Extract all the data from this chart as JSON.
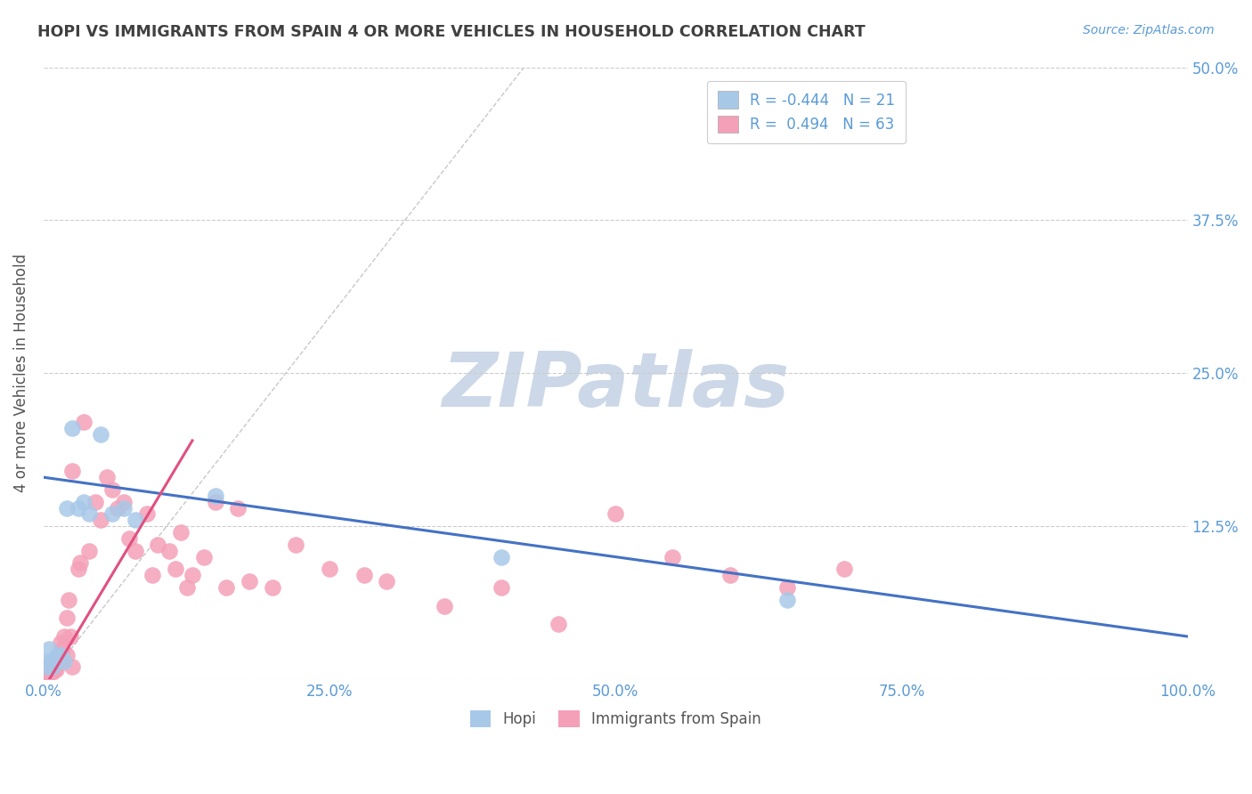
{
  "title": "HOPI VS IMMIGRANTS FROM SPAIN 4 OR MORE VEHICLES IN HOUSEHOLD CORRELATION CHART",
  "source": "Source: ZipAtlas.com",
  "ylabel": "4 or more Vehicles in Household",
  "xlim": [
    0,
    100
  ],
  "ylim": [
    0,
    50
  ],
  "xticks": [
    0,
    25,
    50,
    75,
    100
  ],
  "xticklabels": [
    "0.0%",
    "25.0%",
    "50.0%",
    "75.0%",
    "100.0%"
  ],
  "yticks": [
    0,
    12.5,
    25,
    37.5,
    50
  ],
  "yticklabels_right": [
    "",
    "12.5%",
    "25.0%",
    "37.5%",
    "50.0%"
  ],
  "legend1_r": "-0.444",
  "legend1_n": "21",
  "legend2_r": "0.494",
  "legend2_n": "63",
  "hopi_color": "#a8c8e8",
  "spain_color": "#f4a0b8",
  "hopi_line_color": "#4472c4",
  "spain_line_color": "#e05080",
  "watermark_text": "ZIPatlas",
  "hopi_scatter": [
    [
      0.3,
      1.0
    ],
    [
      0.4,
      1.5
    ],
    [
      0.5,
      2.5
    ],
    [
      0.6,
      1.5
    ],
    [
      0.8,
      1.0
    ],
    [
      1.0,
      1.5
    ],
    [
      1.2,
      2.0
    ],
    [
      1.5,
      2.0
    ],
    [
      1.8,
      1.5
    ],
    [
      2.0,
      14.0
    ],
    [
      2.5,
      20.5
    ],
    [
      3.0,
      14.0
    ],
    [
      3.5,
      14.5
    ],
    [
      4.0,
      13.5
    ],
    [
      5.0,
      20.0
    ],
    [
      6.0,
      13.5
    ],
    [
      7.0,
      14.0
    ],
    [
      8.0,
      13.0
    ],
    [
      15.0,
      15.0
    ],
    [
      40.0,
      10.0
    ],
    [
      65.0,
      6.5
    ]
  ],
  "spain_scatter": [
    [
      0.2,
      0.5
    ],
    [
      0.3,
      0.8
    ],
    [
      0.4,
      0.6
    ],
    [
      0.4,
      1.0
    ],
    [
      0.5,
      0.5
    ],
    [
      0.5,
      1.2
    ],
    [
      0.6,
      0.8
    ],
    [
      0.7,
      1.0
    ],
    [
      0.8,
      0.6
    ],
    [
      0.9,
      0.8
    ],
    [
      1.0,
      1.0
    ],
    [
      1.0,
      1.5
    ],
    [
      1.1,
      0.8
    ],
    [
      1.2,
      1.5
    ],
    [
      1.3,
      2.0
    ],
    [
      1.5,
      1.5
    ],
    [
      1.5,
      3.0
    ],
    [
      1.6,
      2.5
    ],
    [
      1.8,
      3.5
    ],
    [
      2.0,
      2.0
    ],
    [
      2.0,
      5.0
    ],
    [
      2.2,
      6.5
    ],
    [
      2.3,
      3.5
    ],
    [
      2.5,
      1.0
    ],
    [
      2.5,
      17.0
    ],
    [
      3.0,
      9.0
    ],
    [
      3.2,
      9.5
    ],
    [
      3.5,
      21.0
    ],
    [
      4.0,
      10.5
    ],
    [
      4.5,
      14.5
    ],
    [
      5.0,
      13.0
    ],
    [
      5.5,
      16.5
    ],
    [
      6.0,
      15.5
    ],
    [
      6.5,
      14.0
    ],
    [
      7.0,
      14.5
    ],
    [
      7.5,
      11.5
    ],
    [
      8.0,
      10.5
    ],
    [
      9.0,
      13.5
    ],
    [
      9.5,
      8.5
    ],
    [
      10.0,
      11.0
    ],
    [
      11.0,
      10.5
    ],
    [
      11.5,
      9.0
    ],
    [
      12.0,
      12.0
    ],
    [
      12.5,
      7.5
    ],
    [
      13.0,
      8.5
    ],
    [
      14.0,
      10.0
    ],
    [
      15.0,
      14.5
    ],
    [
      16.0,
      7.5
    ],
    [
      17.0,
      14.0
    ],
    [
      18.0,
      8.0
    ],
    [
      20.0,
      7.5
    ],
    [
      22.0,
      11.0
    ],
    [
      25.0,
      9.0
    ],
    [
      28.0,
      8.5
    ],
    [
      30.0,
      8.0
    ],
    [
      35.0,
      6.0
    ],
    [
      40.0,
      7.5
    ],
    [
      45.0,
      4.5
    ],
    [
      50.0,
      13.5
    ],
    [
      55.0,
      10.0
    ],
    [
      60.0,
      8.5
    ],
    [
      65.0,
      7.5
    ],
    [
      70.0,
      9.0
    ]
  ],
  "hopi_line_pts": [
    [
      0,
      16.5
    ],
    [
      100,
      3.5
    ]
  ],
  "spain_line_pts": [
    [
      0.5,
      0.0
    ],
    [
      13.0,
      19.5
    ]
  ],
  "dashed_line_pts": [
    [
      2,
      2
    ],
    [
      42,
      50
    ]
  ],
  "background_color": "#ffffff",
  "grid_color": "#cccccc",
  "title_color": "#404040",
  "axis_tick_color": "#5b9bd5",
  "watermark_color": "#ccd8e8",
  "legend_text_color": "#5b9bd5",
  "ylabel_color": "#555555"
}
